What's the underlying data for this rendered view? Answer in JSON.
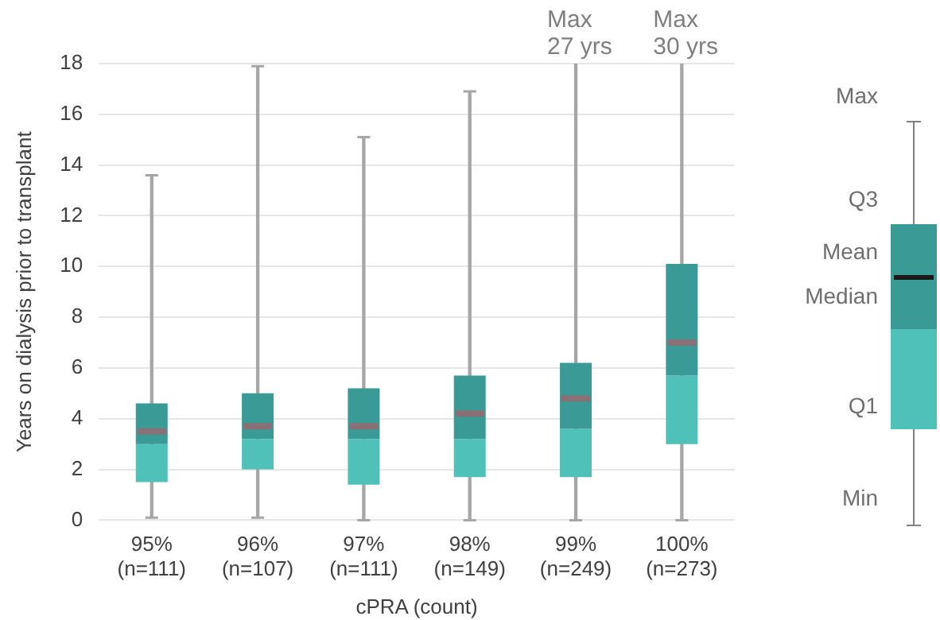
{
  "chart_data": {
    "type": "box",
    "xlabel": "cPRA (count)",
    "ylabel": "Years on dialysis prior to transplant",
    "categories": [
      "95%\n(n=111)",
      "96%\n(n=107)",
      "97%\n(n=111)",
      "98%\n(n=149)",
      "99%\n(n=249)",
      "100%\n(n=273)"
    ],
    "series": [
      {
        "color": "#4fc1b8",
        "boxes": [
          {
            "low": 0.1,
            "q1": 1.5,
            "median": 3.0,
            "q3": 4.6,
            "high": 13.6,
            "mean": 3.5
          },
          {
            "low": 0.1,
            "q1": 2.0,
            "median": 3.2,
            "q3": 5.0,
            "high": 17.9,
            "mean": 3.7
          },
          {
            "low": 0,
            "q1": 1.4,
            "median": 3.2,
            "q3": 5.2,
            "high": 15.1,
            "mean": 3.7
          },
          {
            "low": 0,
            "q1": 1.7,
            "median": 3.2,
            "q3": 5.7,
            "high": 16.9,
            "mean": 4.2
          },
          {
            "low": 0,
            "q1": 1.7,
            "median": 3.6,
            "q3": 6.2,
            "high": 27,
            "mean": 4.8
          },
          {
            "low": 0,
            "q1": 3.0,
            "median": 5.7,
            "q3": 10.1,
            "high": 30,
            "mean": 7.0
          }
        ]
      }
    ],
    "ylim": [
      0,
      18
    ],
    "yticks": [
      0,
      2,
      4,
      6,
      8,
      10,
      12,
      14,
      16,
      18
    ],
    "grid": "y",
    "legend": false,
    "annotations": [
      "Max\n27 yrs",
      "Max\n30 yrs",
      "Max",
      "Q3",
      "Mean",
      "Median",
      "Q1",
      "Min"
    ]
  }
}
